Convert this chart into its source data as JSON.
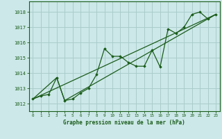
{
  "title": "Graphe pression niveau de la mer (hPa)",
  "bg_color": "#cce8e8",
  "grid_color": "#aacccc",
  "line_color": "#1a5c1a",
  "xlim": [
    -0.5,
    23.5
  ],
  "ylim": [
    1011.5,
    1018.7
  ],
  "yticks": [
    1012,
    1013,
    1014,
    1015,
    1016,
    1017,
    1018
  ],
  "xticks": [
    0,
    1,
    2,
    3,
    4,
    5,
    6,
    7,
    8,
    9,
    10,
    11,
    12,
    13,
    14,
    15,
    16,
    17,
    18,
    19,
    20,
    21,
    22,
    23
  ],
  "series1_x": [
    0,
    1,
    2,
    3,
    4,
    5,
    6,
    7,
    8,
    9,
    10,
    11,
    12,
    13,
    14,
    15,
    16,
    17,
    18,
    19,
    20,
    21,
    22,
    23
  ],
  "series1_y": [
    1012.3,
    1012.5,
    1012.6,
    1013.7,
    1012.2,
    1012.3,
    1012.7,
    1013.0,
    1013.9,
    1015.6,
    1015.1,
    1015.1,
    1014.7,
    1014.45,
    1014.45,
    1015.5,
    1014.4,
    1016.9,
    1016.6,
    1017.0,
    1017.85,
    1018.0,
    1017.55,
    1017.85
  ],
  "series2_x": [
    0,
    23
  ],
  "series2_y": [
    1012.3,
    1017.85
  ],
  "series3_x": [
    0,
    3,
    4,
    23
  ],
  "series3_y": [
    1012.3,
    1013.7,
    1012.2,
    1017.85
  ]
}
